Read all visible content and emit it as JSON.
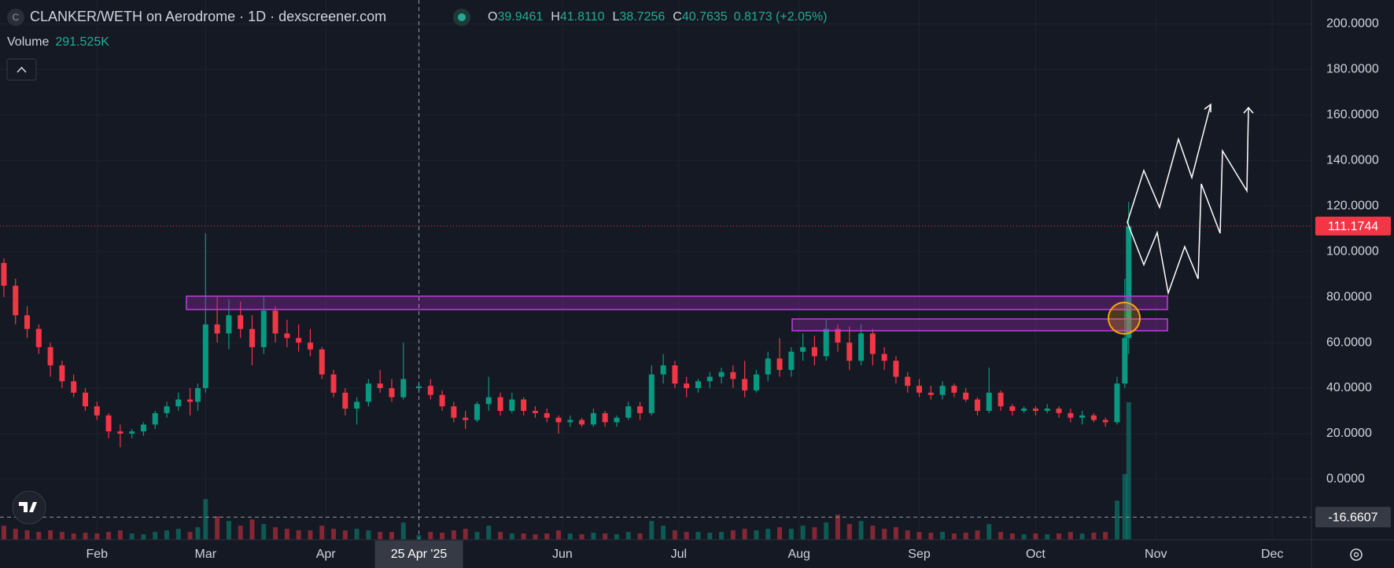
{
  "chart_data": {
    "type": "candlestick",
    "icon_letter": "C",
    "title": "CLANKER/WETH on Aerodrome · 1D · dexscreener.com",
    "legend": {
      "open_label": "O",
      "open": 39.9461,
      "high_label": "H",
      "high": {
        "value": 41.811,
        "label": "41.8110"
      },
      "low_label": "L",
      "low": 38.7256,
      "close_label": "C",
      "close": 40.7635,
      "change": "0.8173 (+2.05%)",
      "volume_label": "Volume",
      "volume": {
        "value": 291525,
        "label": "291.525K"
      }
    },
    "up_color": "#089981",
    "down_color": "#f23645",
    "grid": true,
    "xlim": [
      0,
      338.1
    ],
    "xticks": [
      {
        "value": 25,
        "label": "Feb"
      },
      {
        "value": 53,
        "label": "Mar"
      },
      {
        "value": 84,
        "label": "Apr"
      },
      {
        "value": 145,
        "label": "Jun"
      },
      {
        "value": 175,
        "label": "Jul"
      },
      {
        "value": 206,
        "label": "Aug"
      },
      {
        "value": 237,
        "label": "Sep"
      },
      {
        "value": 267,
        "label": "Oct"
      },
      {
        "value": 298,
        "label": "Nov"
      },
      {
        "value": 328,
        "label": "Dec"
      }
    ],
    "ylim": [
      -26.6,
      210.5
    ],
    "yticks": [
      {
        "value": 0,
        "label": "0.0000"
      },
      {
        "value": 20,
        "label": "20.0000"
      },
      {
        "value": 40,
        "label": "40.0000"
      },
      {
        "value": 60,
        "label": "60.0000"
      },
      {
        "value": 80,
        "label": "80.0000"
      },
      {
        "value": 100,
        "label": "100.0000"
      },
      {
        "value": 120,
        "label": "120.0000"
      },
      {
        "value": 140,
        "label": "140.0000"
      },
      {
        "value": 160,
        "label": "160.0000"
      },
      {
        "value": 180,
        "label": "180.0000"
      },
      {
        "value": 200,
        "label": "200.0000"
      }
    ],
    "last_price": 111.1744,
    "crosshair": {
      "x": {
        "value": 108,
        "label": "25 Apr '25"
      },
      "y": -16.6607
    },
    "x": [
      1,
      4,
      7,
      10,
      13,
      16,
      19,
      22,
      25,
      28,
      31,
      34,
      37,
      40,
      43,
      46,
      49,
      51,
      53,
      56,
      59,
      62,
      65,
      68,
      71,
      74,
      77,
      80,
      83,
      86,
      89,
      92,
      95,
      98,
      101,
      104,
      108,
      111,
      114,
      117,
      120,
      123,
      126,
      129,
      132,
      135,
      138,
      141,
      144,
      147,
      150,
      153,
      156,
      159,
      162,
      165,
      168,
      171,
      174,
      177,
      180,
      183,
      186,
      189,
      192,
      195,
      198,
      201,
      204,
      207,
      210,
      213,
      216,
      219,
      222,
      225,
      228,
      231,
      234,
      237,
      240,
      243,
      246,
      249,
      252,
      255,
      258,
      261,
      264,
      267,
      270,
      273,
      276,
      279,
      282,
      285,
      288,
      290,
      291
    ],
    "open": [
      95,
      85,
      72,
      66,
      58,
      50,
      43,
      38,
      32,
      28,
      21,
      20,
      21,
      24,
      29,
      32,
      35,
      34,
      40,
      68,
      64,
      72,
      66,
      58,
      74,
      64,
      62,
      60,
      57,
      46,
      38,
      31,
      34,
      42,
      40,
      36,
      39.9461,
      41,
      37,
      32,
      27,
      26,
      33,
      36,
      30,
      35,
      30,
      29,
      27,
      25,
      26,
      24,
      29,
      25,
      27,
      32,
      29,
      46,
      50,
      42,
      40,
      43,
      45,
      47,
      44,
      39,
      46,
      53,
      48,
      56,
      58,
      54,
      66,
      60,
      52,
      64,
      55,
      52,
      45,
      41,
      38,
      37,
      41,
      38,
      35,
      30,
      38,
      32,
      30,
      31,
      30,
      31,
      29,
      27,
      28,
      26,
      25,
      42,
      62
    ],
    "high": [
      97,
      88,
      76,
      68,
      60,
      52,
      46,
      40,
      34,
      29,
      24,
      22,
      25,
      30,
      34,
      38,
      40,
      42,
      108,
      80,
      79,
      78,
      72,
      80,
      76,
      70,
      68,
      66,
      58,
      48,
      40,
      36,
      44,
      48,
      44,
      60,
      41.811,
      44,
      39,
      34,
      30,
      34,
      45,
      38,
      38,
      36,
      32,
      31,
      28,
      28,
      27,
      31,
      30,
      28,
      34,
      34,
      50,
      55,
      52,
      45,
      44,
      47,
      49,
      50,
      52,
      48,
      56,
      62,
      58,
      64,
      63,
      70,
      68,
      67,
      68,
      66,
      58,
      54,
      47,
      44,
      41,
      43,
      42,
      40,
      36,
      49,
      39,
      33,
      32,
      32,
      33,
      32,
      31,
      30,
      29,
      27,
      45,
      88,
      121.8
    ],
    "low": [
      80,
      68,
      62,
      55,
      45,
      40,
      36,
      30,
      26,
      18,
      14,
      18,
      19,
      22,
      27,
      30,
      28,
      30,
      38,
      60,
      57,
      62,
      50,
      55,
      60,
      58,
      56,
      54,
      44,
      36,
      28,
      24,
      32,
      38,
      34,
      35,
      38.7256,
      35,
      30,
      25,
      22,
      25,
      30,
      28,
      29,
      28,
      27,
      25,
      20,
      23,
      23,
      23,
      23,
      23,
      26,
      26,
      28,
      42,
      40,
      36,
      38,
      40,
      42,
      40,
      36,
      38,
      43,
      45,
      45,
      52,
      50,
      52,
      56,
      48,
      50,
      50,
      48,
      42,
      38,
      36,
      35,
      35,
      36,
      34,
      28,
      29,
      30,
      28,
      29,
      28,
      29,
      27,
      25,
      24,
      25,
      23,
      24,
      40,
      55
    ],
    "close": [
      85,
      72,
      66,
      58,
      50,
      43,
      38,
      32,
      28,
      21,
      20,
      21,
      24,
      29,
      32,
      35,
      34,
      40,
      68,
      64,
      72,
      66,
      58,
      74,
      64,
      62,
      60,
      57,
      46,
      38,
      31,
      34,
      42,
      40,
      36,
      44,
      40.7635,
      37,
      32,
      27,
      26,
      33,
      36,
      30,
      35,
      30,
      29,
      27,
      25,
      26,
      24,
      29,
      25,
      27,
      32,
      29,
      46,
      50,
      42,
      40,
      43,
      45,
      47,
      44,
      39,
      46,
      53,
      48,
      56,
      58,
      54,
      66,
      60,
      52,
      64,
      55,
      52,
      45,
      41,
      38,
      37,
      41,
      38,
      35,
      30,
      38,
      32,
      30,
      31,
      30,
      31,
      29,
      27,
      28,
      26,
      25,
      42,
      62,
      111.1744
    ],
    "volume": [
      900000,
      700000,
      600000,
      500000,
      600000,
      500000,
      400000,
      450000,
      400000,
      500000,
      600000,
      400000,
      350000,
      500000,
      600000,
      700000,
      500000,
      800000,
      2600000,
      1500000,
      1200000,
      900000,
      1300000,
      1000000,
      800000,
      700000,
      600000,
      600000,
      900000,
      700000,
      600000,
      700000,
      600000,
      500000,
      500000,
      1100000,
      291525,
      500000,
      450000,
      600000,
      700000,
      500000,
      900000,
      500000,
      400000,
      400000,
      350000,
      400000,
      600000,
      400000,
      350000,
      450000,
      400000,
      350000,
      500000,
      400000,
      1200000,
      900000,
      600000,
      500000,
      500000,
      450000,
      500000,
      600000,
      700000,
      600000,
      700000,
      800000,
      700000,
      900000,
      800000,
      1100000,
      1600000,
      1000000,
      1200000,
      900000,
      700000,
      800000,
      600000,
      500000,
      450000,
      500000,
      400000,
      450000,
      600000,
      1000000,
      500000,
      400000,
      350000,
      400000,
      350000,
      400000,
      500000,
      400000,
      450000,
      500000,
      2500000,
      4200000,
      8800000
    ]
  }
}
